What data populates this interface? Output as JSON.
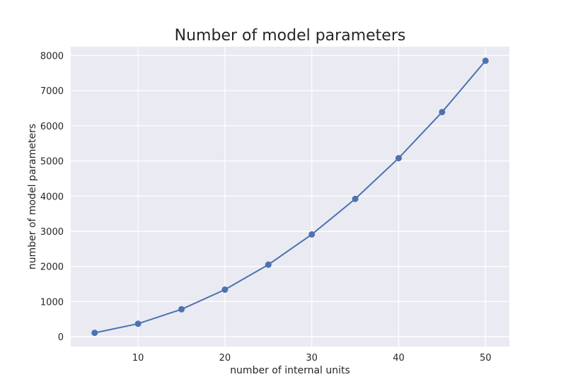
{
  "chart_data": {
    "type": "line",
    "title": "Number of model parameters",
    "xlabel": "number of internal units",
    "ylabel": "number of model parameters",
    "x": [
      5,
      10,
      15,
      20,
      25,
      30,
      35,
      40,
      45,
      50
    ],
    "series": [
      {
        "values": [
          110,
          370,
          780,
          1340,
          2050,
          2910,
          3920,
          5080,
          6390,
          7850
        ],
        "color": "#4c72b0"
      }
    ],
    "xticks": [
      10,
      20,
      30,
      40,
      50
    ],
    "yticks": [
      0,
      1000,
      2000,
      3000,
      4000,
      5000,
      6000,
      7000,
      8000
    ],
    "xlim": [
      2.25,
      52.75
    ],
    "ylim": [
      -280,
      8250
    ],
    "grid": true,
    "background_color": "#eaeaf2",
    "grid_color": "#ffffff"
  }
}
